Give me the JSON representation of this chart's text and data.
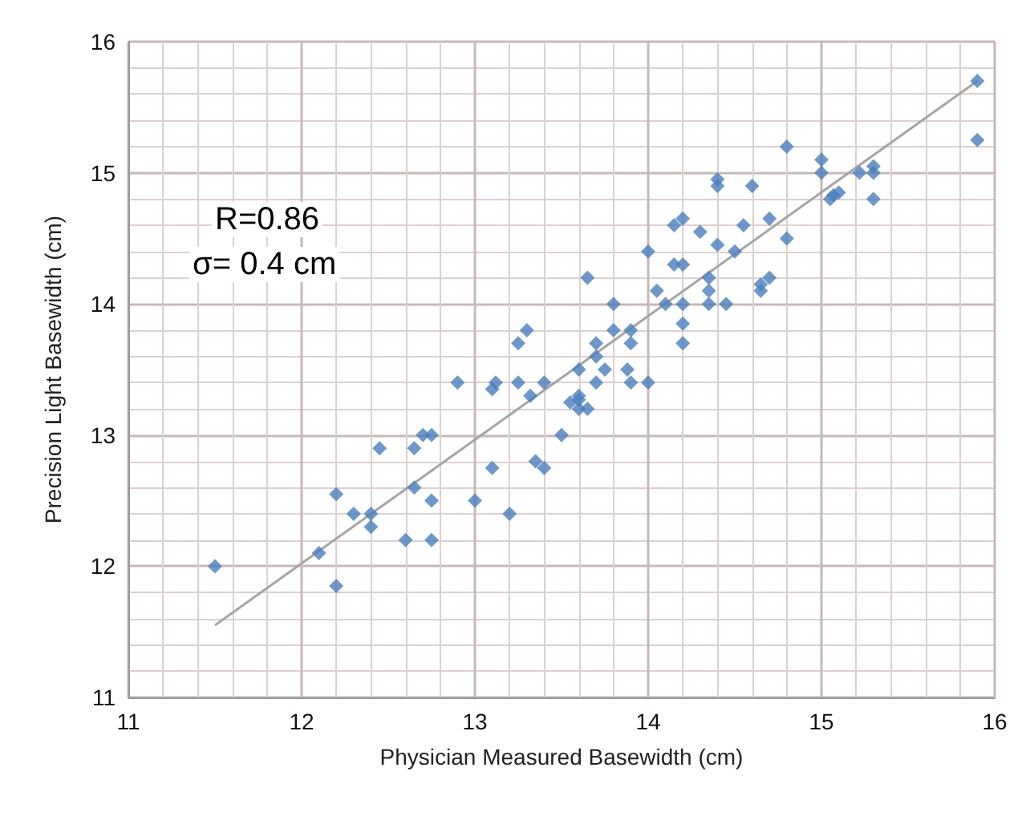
{
  "chart_data": {
    "type": "scatter",
    "xlabel": "Physician Measured Basewidth (cm)",
    "ylabel": "Precision Light Basewidth (cm)",
    "xlim": [
      11,
      16
    ],
    "ylim": [
      11,
      16
    ],
    "xticks": [
      11,
      12,
      13,
      14,
      15,
      16
    ],
    "yticks": [
      11,
      12,
      13,
      14,
      15,
      16
    ],
    "grid": true,
    "marker": "diamond",
    "annotations": [
      "R=0.86",
      "σ= 0.4 cm"
    ],
    "series": [
      {
        "color": "#4a7ebb",
        "x": [
          11.5,
          12.1,
          12.2,
          12.2,
          12.3,
          12.4,
          12.4,
          12.45,
          12.6,
          12.65,
          12.65,
          12.7,
          12.75,
          12.75,
          12.75,
          12.9,
          13.0,
          13.1,
          13.1,
          13.12,
          13.2,
          13.25,
          13.3,
          13.25,
          13.32,
          13.35,
          13.4,
          13.4,
          13.5,
          13.55,
          13.6,
          13.6,
          13.6,
          13.65,
          13.6,
          13.65,
          13.7,
          13.7,
          13.7,
          13.75,
          13.8,
          13.8,
          13.88,
          13.9,
          13.9,
          13.9,
          14.0,
          14.0,
          14.05,
          14.1,
          14.15,
          14.2,
          14.15,
          14.2,
          14.2,
          14.2,
          14.2,
          14.3,
          14.35,
          14.35,
          14.35,
          14.45,
          14.4,
          14.5,
          14.4,
          14.4,
          14.55,
          14.6,
          14.7,
          14.8,
          14.8,
          14.65,
          14.65,
          14.7,
          15.0,
          15.0,
          15.05,
          15.07,
          15.1,
          15.22,
          15.3,
          15.3,
          15.3,
          15.9,
          15.9
        ],
        "values": [
          12.0,
          12.1,
          11.85,
          12.55,
          12.4,
          12.4,
          12.3,
          12.9,
          12.2,
          12.6,
          12.9,
          13.0,
          13.0,
          12.5,
          12.2,
          13.4,
          12.5,
          12.75,
          13.35,
          13.4,
          12.4,
          13.7,
          13.8,
          13.4,
          13.3,
          12.8,
          12.75,
          13.4,
          13.0,
          13.25,
          13.27,
          13.3,
          13.2,
          13.2,
          13.5,
          14.2,
          13.4,
          13.6,
          13.7,
          13.5,
          13.8,
          14.0,
          13.5,
          13.4,
          13.7,
          13.8,
          13.4,
          14.4,
          14.1,
          14.0,
          14.3,
          14.3,
          14.6,
          14.65,
          14.0,
          13.85,
          13.7,
          14.55,
          14.2,
          14.1,
          14.0,
          14.0,
          14.45,
          14.4,
          14.95,
          14.9,
          14.6,
          14.9,
          14.65,
          15.2,
          14.5,
          14.1,
          14.15,
          14.2,
          15.1,
          15.0,
          14.8,
          14.83,
          14.85,
          15.0,
          15.05,
          15.0,
          14.8,
          15.7,
          15.25
        ]
      },
      {
        "type": "line",
        "color": "#a6a6a6",
        "marker": "none",
        "x": [
          11.5,
          15.9
        ],
        "values": [
          11.55,
          15.7
        ]
      }
    ]
  }
}
